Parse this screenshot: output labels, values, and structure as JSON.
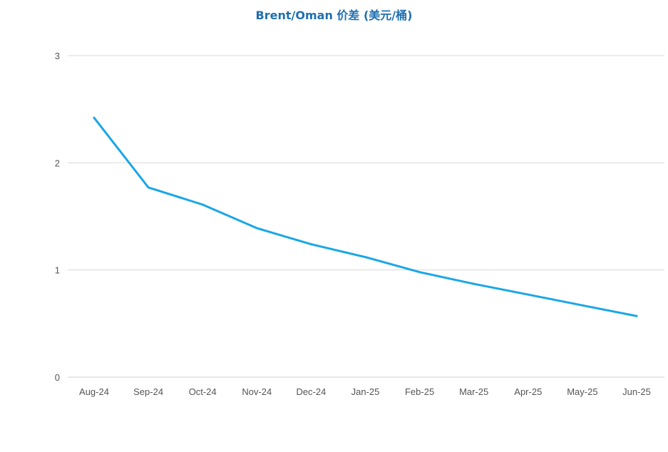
{
  "chart_data": {
    "type": "line",
    "title": "Brent/Oman 价差 (美元/桶)",
    "xlabel": "",
    "ylabel": "",
    "categories": [
      "Aug-24",
      "Sep-24",
      "Oct-24",
      "Nov-24",
      "Dec-24",
      "Jan-25",
      "Feb-25",
      "Mar-25",
      "Apr-25",
      "May-25",
      "Jun-25"
    ],
    "series": [
      {
        "values": [
          2.42,
          1.77,
          1.61,
          1.39,
          1.24,
          1.12,
          0.98,
          0.87,
          0.77,
          0.67,
          0.57
        ]
      }
    ],
    "ylim": [
      0,
      3
    ],
    "yticks": [
      "0",
      "1",
      "2",
      "3"
    ],
    "grid": true,
    "colors": {
      "line": "#1aa7e6",
      "grid": "#d9d9d9",
      "title": "#1f6fb2"
    }
  }
}
